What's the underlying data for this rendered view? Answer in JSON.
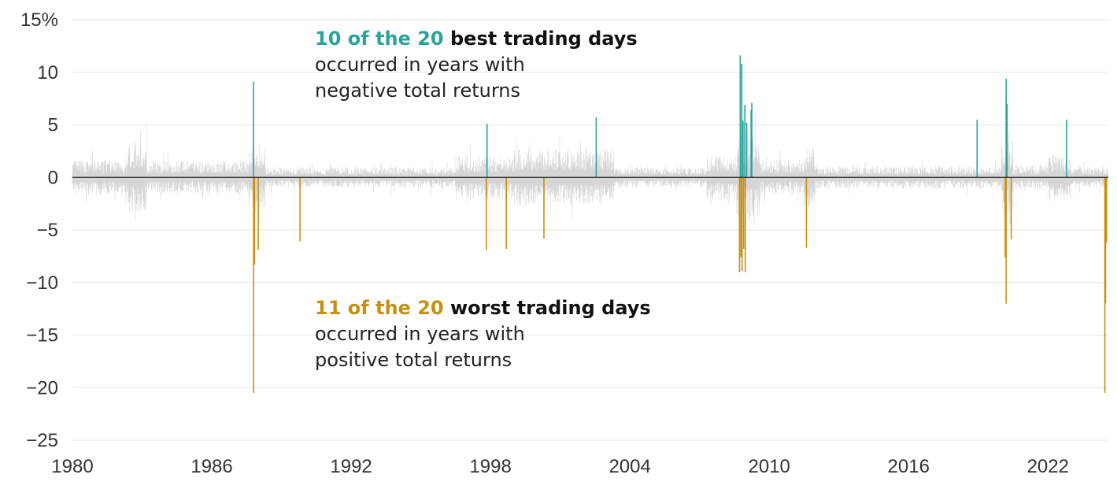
{
  "chart_data": {
    "type": "bar",
    "x_range": [
      1980,
      2024.6
    ],
    "ylim": [
      -25,
      15
    ],
    "y_ticks": [
      15,
      10,
      5,
      0,
      -5,
      -10,
      -15,
      -20,
      -25
    ],
    "y_tick_labels": [
      "15%",
      "10",
      "5",
      "0",
      "−5",
      "−10",
      "−15",
      "−20",
      "−25"
    ],
    "x_ticks": [
      1980,
      1986,
      1992,
      1998,
      2004,
      2010,
      2016,
      2022
    ],
    "x_tick_labels": [
      "1980",
      "1986",
      "1992",
      "1998",
      "2004",
      "2010",
      "2016",
      "2022"
    ],
    "grid": true,
    "series": [
      {
        "name": "best",
        "color": "#2aa39a",
        "points": [
          {
            "x": 1987.8,
            "y": 9.1
          },
          {
            "x": 1997.85,
            "y": 5.1
          },
          {
            "x": 2002.55,
            "y": 5.7
          },
          {
            "x": 2008.75,
            "y": 11.6
          },
          {
            "x": 2008.82,
            "y": 10.8
          },
          {
            "x": 2008.87,
            "y": 5.4
          },
          {
            "x": 2008.95,
            "y": 6.9
          },
          {
            "x": 2009.03,
            "y": 5.2
          },
          {
            "x": 2009.25,
            "y": 7.1
          },
          {
            "x": 2009.22,
            "y": 6.4
          },
          {
            "x": 2018.95,
            "y": 5.5
          },
          {
            "x": 2020.2,
            "y": 9.4
          },
          {
            "x": 2020.24,
            "y": 7.0
          },
          {
            "x": 2022.8,
            "y": 5.5
          }
        ]
      },
      {
        "name": "worst",
        "color": "#c8900f",
        "points": [
          {
            "x": 1987.8,
            "y": -20.5
          },
          {
            "x": 1987.84,
            "y": -8.3
          },
          {
            "x": 1988.0,
            "y": -6.9
          },
          {
            "x": 1989.8,
            "y": -6.1
          },
          {
            "x": 1997.82,
            "y": -6.9
          },
          {
            "x": 1998.68,
            "y": -6.8
          },
          {
            "x": 2000.3,
            "y": -5.8
          },
          {
            "x": 2008.72,
            "y": -9.0
          },
          {
            "x": 2008.78,
            "y": -7.6
          },
          {
            "x": 2008.83,
            "y": -8.9
          },
          {
            "x": 2008.9,
            "y": -6.8
          },
          {
            "x": 2008.97,
            "y": -9.0
          },
          {
            "x": 2011.6,
            "y": -6.7
          },
          {
            "x": 2020.2,
            "y": -12.0
          },
          {
            "x": 2020.16,
            "y": -7.6
          },
          {
            "x": 2020.42,
            "y": -5.9
          },
          {
            "x": 2024.45,
            "y": -20.5
          },
          {
            "x": 2024.48,
            "y": -12.0
          },
          {
            "x": 2024.52,
            "y": -6.2
          }
        ]
      }
    ],
    "background_series": {
      "name": "daily returns",
      "color": "#d6d6d6",
      "segments": [
        {
          "from": 1980.0,
          "to": 1982.4,
          "level": 1.7
        },
        {
          "from": 1982.4,
          "to": 1983.2,
          "level": 3.4
        },
        {
          "from": 1983.2,
          "to": 1987.6,
          "level": 1.6
        },
        {
          "from": 1987.6,
          "to": 1988.3,
          "level": 3.2
        },
        {
          "from": 1988.3,
          "to": 1996.5,
          "level": 1.0
        },
        {
          "from": 1996.5,
          "to": 1999.0,
          "level": 2.1
        },
        {
          "from": 1999.0,
          "to": 2003.3,
          "level": 2.7
        },
        {
          "from": 2003.3,
          "to": 2007.3,
          "level": 1.0
        },
        {
          "from": 2007.3,
          "to": 2008.6,
          "level": 2.2
        },
        {
          "from": 2008.6,
          "to": 2009.6,
          "level": 4.2
        },
        {
          "from": 2009.6,
          "to": 2011.5,
          "level": 1.7
        },
        {
          "from": 2011.5,
          "to": 2012.0,
          "level": 2.8
        },
        {
          "from": 2012.0,
          "to": 2020.0,
          "level": 1.1
        },
        {
          "from": 2020.0,
          "to": 2020.5,
          "level": 3.6
        },
        {
          "from": 2020.5,
          "to": 2022.0,
          "level": 1.2
        },
        {
          "from": 2022.0,
          "to": 2023.0,
          "level": 2.3
        },
        {
          "from": 2023.0,
          "to": 2024.6,
          "level": 1.1
        }
      ]
    }
  },
  "annotations": {
    "best": {
      "highlight": "10 of the 20",
      "bold": " best trading days",
      "line2": "occurred in years with",
      "line3": "negative total returns",
      "highlight_color": "#2aa39a"
    },
    "worst": {
      "highlight": "11 of the 20",
      "bold": " worst trading days",
      "line2": "occurred in years with",
      "line3": "positive total returns",
      "highlight_color": "#c8900f"
    }
  }
}
